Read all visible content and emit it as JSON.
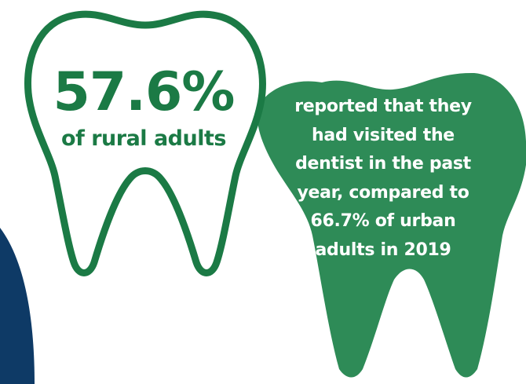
{
  "colors": {
    "accent_green": "#1b7a45",
    "fill_green": "#2e8b57",
    "navy": "#0e3a66",
    "background": "#ffffff"
  },
  "icons": {
    "left": "tooth-outline-icon",
    "right": "tooth-filled-icon"
  },
  "stat": {
    "percent": "57.6%",
    "caption": "of rural adults"
  },
  "description": "reported that they\nhad visited the\ndentist in the past\nyear, compared to\n66.7% of urban\nadults in 2019"
}
